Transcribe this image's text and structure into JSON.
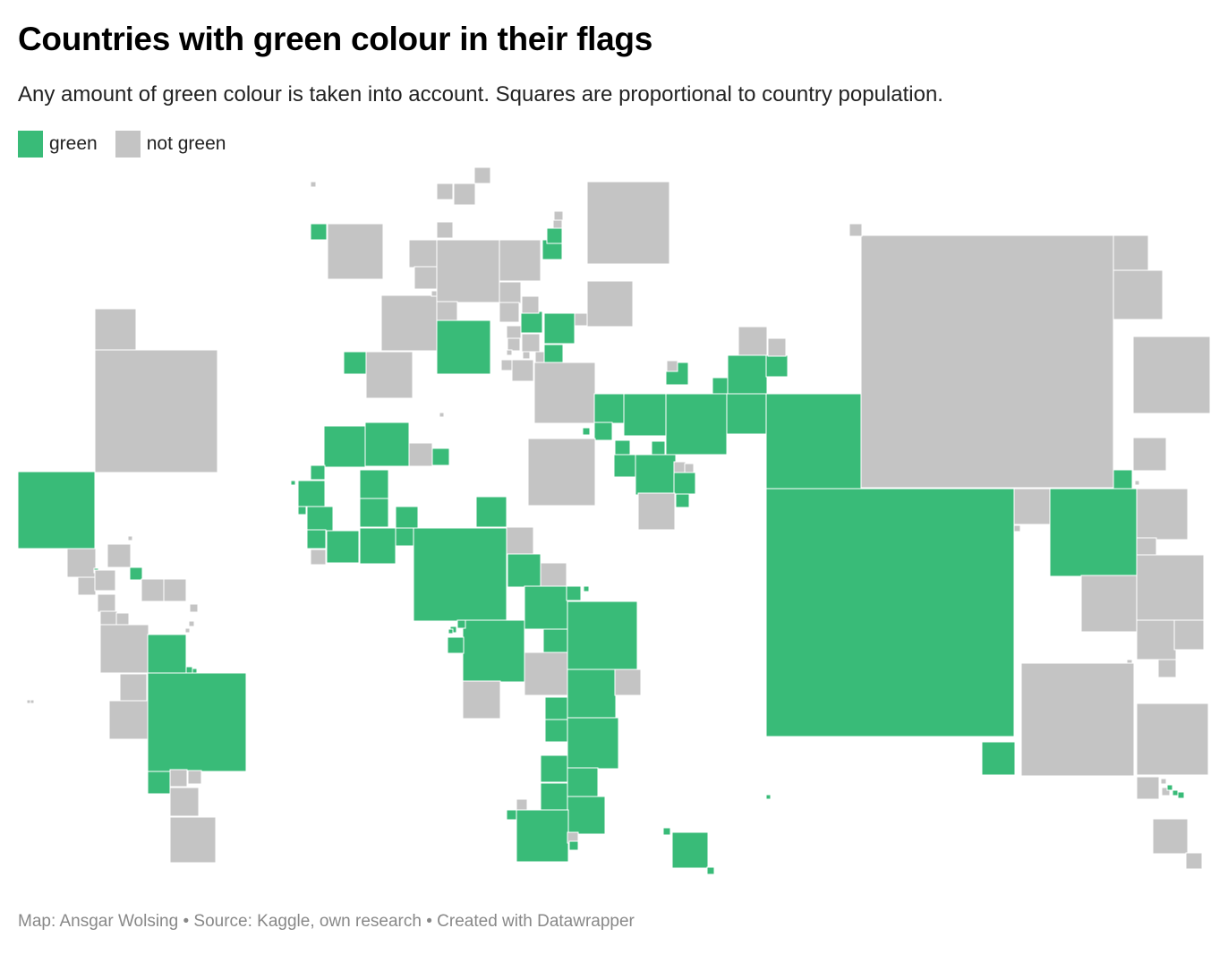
{
  "title": "Countries with green colour in their flags",
  "subtitle": "Any amount of green colour is taken into account. Squares are proportional to country population.",
  "legend": [
    {
      "label": "green",
      "color": "#39bb78",
      "key": "green"
    },
    {
      "label": "not green",
      "color": "#c4c4c4",
      "key": "not-green"
    }
  ],
  "footer": {
    "author": "Map: Ansgar Wolsing",
    "source": "Source: Kaggle, own research",
    "tool": "Created with Datawrapper",
    "separator": "•"
  },
  "colors": {
    "green": "#39bb78",
    "not_green": "#c4c4c4",
    "background": "#ffffff"
  },
  "map": {
    "type": "population-square cartogram",
    "encoding": "square area proportional to country population; fill = flag contains green",
    "country_labels_shown": false
  }
}
